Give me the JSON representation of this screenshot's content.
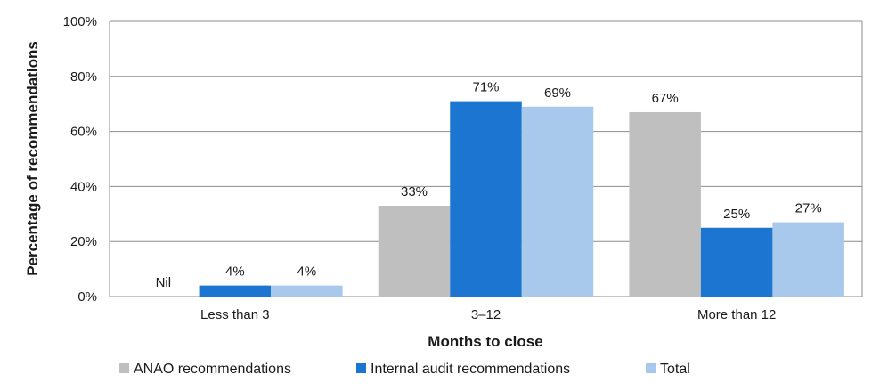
{
  "chart_data": {
    "type": "bar",
    "title": "",
    "xlabel": "Months to close",
    "ylabel": "Percentage of recommendations",
    "ylim": [
      0,
      100
    ],
    "yticks": [
      "0%",
      "20%",
      "40%",
      "60%",
      "80%",
      "100%"
    ],
    "categories": [
      "Less than 3",
      "3–12",
      "More than 12"
    ],
    "series": [
      {
        "name": "ANAO recommendations",
        "color": "#bfbfbf",
        "values": [
          0,
          33,
          67
        ],
        "labels": [
          "Nil",
          "33%",
          "67%"
        ]
      },
      {
        "name": "Internal audit recommendations",
        "color": "#1c75d0",
        "values": [
          4,
          71,
          25
        ],
        "labels": [
          "4%",
          "71%",
          "25%"
        ]
      },
      {
        "name": "Total",
        "color": "#a8c9ec",
        "values": [
          4,
          69,
          27
        ],
        "labels": [
          "4%",
          "69%",
          "27%"
        ]
      }
    ],
    "grid": true,
    "legend_position": "bottom"
  }
}
